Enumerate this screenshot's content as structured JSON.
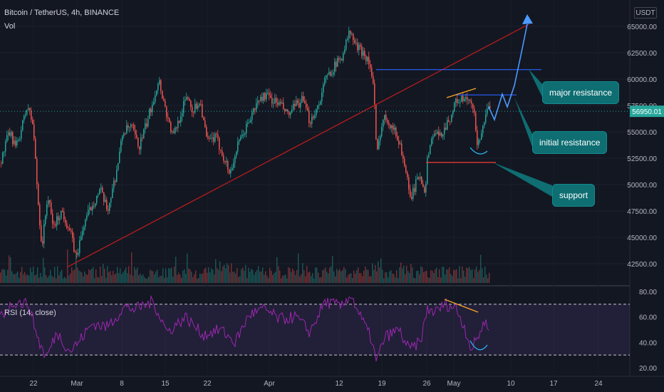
{
  "header": {
    "symbol_title": "Bitcoin / TetherUS, 4h, BINANCE",
    "volume_label": "Vol",
    "currency": "USDT"
  },
  "rsi_label": "RSI (14, close)",
  "annotations": {
    "major_resistance": "major resistance",
    "initial_resistance": "initial resistance",
    "support": "support"
  },
  "colors": {
    "background": "#131722",
    "up": "#26a69a",
    "down": "#ef5350",
    "trendline": "#b71c1c",
    "resistance_line": "#2962ff",
    "rsi_line": "#9c27b0",
    "annotation_box": "#0e6e72",
    "projection": "#4c9aff"
  },
  "chart_data": [
    {
      "type": "candlestick",
      "title": "Bitcoin / TetherUS, 4h, BINANCE",
      "price_axis_ticks": [
        "65000.00",
        "62500.00",
        "60000.00",
        "57500.00",
        "55000.00",
        "52500.00",
        "50000.00",
        "47500.00",
        "45000.00",
        "42500.00"
      ],
      "ylim": [
        41000,
        67000
      ],
      "last_price": "56950.01",
      "x_tick_labels": [
        "22",
        "Mar",
        "8",
        "15",
        "22",
        "Apr",
        "12",
        "19",
        "26",
        "May",
        "10",
        "17",
        "24"
      ],
      "levels": {
        "major_resistance": 60900,
        "initial_resistance": 58500,
        "support": 52100
      },
      "trendline": {
        "from_price": 42200,
        "to_price": 65200
      }
    },
    {
      "type": "line",
      "title": "RSI (14, close)",
      "y_ticks": [
        "80.00",
        "60.00",
        "40.00",
        "20.00"
      ],
      "ylim": [
        20,
        82
      ],
      "bands": [
        30,
        70
      ]
    }
  ]
}
